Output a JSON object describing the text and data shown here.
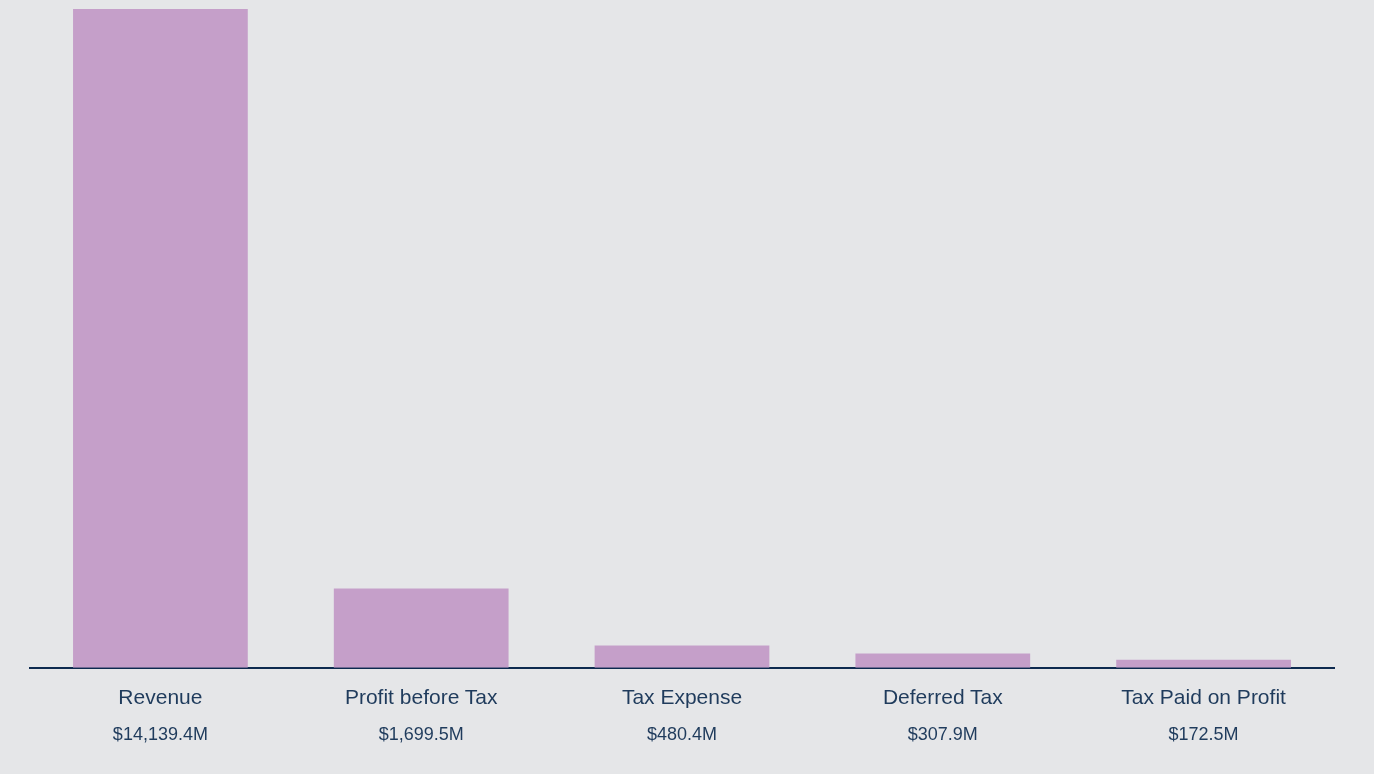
{
  "chart_data": {
    "type": "bar",
    "categories": [
      "Revenue",
      "Profit before Tax",
      "Tax Expense",
      "Deferred Tax",
      "Tax Paid on Profit"
    ],
    "values": [
      14139.4,
      1699.5,
      480.4,
      307.9,
      172.5
    ],
    "value_labels": [
      "$14,139.4M",
      "$1,699.5M",
      "$480.4M",
      "$307.9M",
      "$172.5M"
    ],
    "color": "#c59fc9",
    "grid": false,
    "legend": false
  }
}
